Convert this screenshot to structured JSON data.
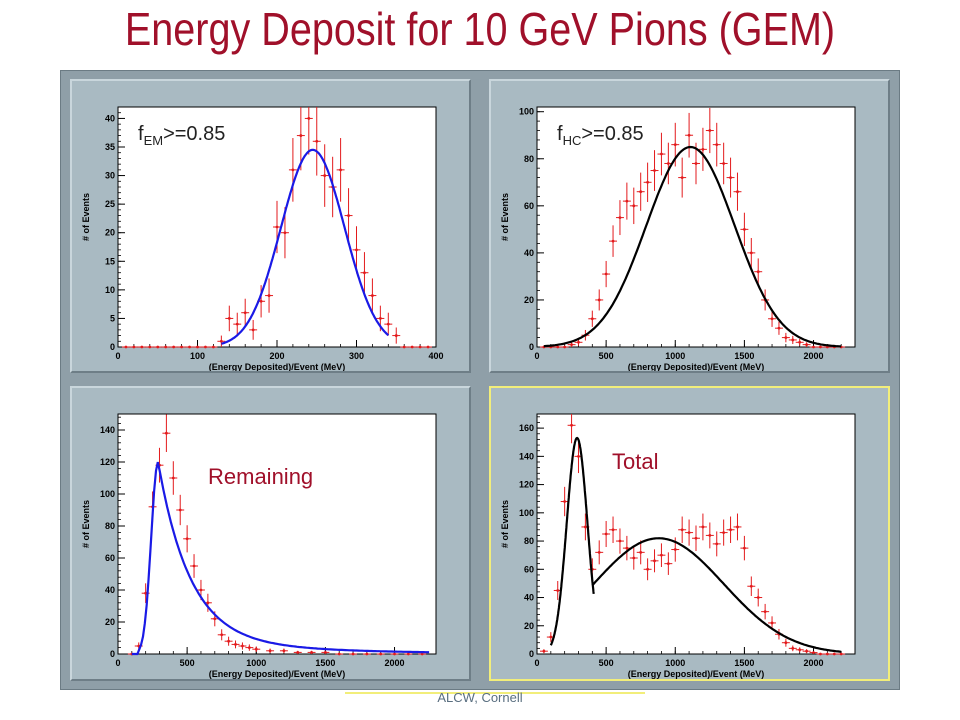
{
  "title": "Energy Deposit for 10 GeV Pions (GEM)",
  "footer": "ALCW, Cornell",
  "colors": {
    "title": "#a0102a",
    "data_points": "#e31a1c",
    "fit_blue": "#1a1ae6",
    "fit_black": "#000000",
    "pad_bg": "#a9bac2",
    "plot_bg": "#ffffff"
  },
  "chart_data": [
    {
      "type": "scatter",
      "panel": "top-left",
      "label": {
        "main": "f",
        "sub": "EM",
        "rest": ">=0.85"
      },
      "label_style": "dark",
      "xlabel": "(Energy Deposited)/Event (MeV)",
      "ylabel": "# of Events",
      "xlim": [
        0,
        400
      ],
      "ylim": [
        0,
        42
      ],
      "xticks": [
        0,
        100,
        200,
        300,
        400
      ],
      "yticks": [
        0,
        5,
        10,
        15,
        20,
        25,
        30,
        35,
        40
      ],
      "fit_color": "blue",
      "points": {
        "x": [
          10,
          20,
          30,
          40,
          50,
          60,
          70,
          80,
          90,
          100,
          110,
          120,
          130,
          140,
          150,
          160,
          170,
          180,
          190,
          200,
          210,
          220,
          230,
          240,
          250,
          260,
          270,
          280,
          290,
          300,
          310,
          320,
          330,
          340,
          350,
          360,
          370,
          380,
          390
        ],
        "y": [
          0,
          0,
          0,
          0,
          0,
          0,
          0,
          0,
          0,
          0,
          0,
          0,
          1,
          5,
          4,
          6,
          3,
          8,
          9,
          21,
          20,
          31,
          37,
          40,
          36,
          30,
          28,
          31,
          23,
          17,
          13,
          9,
          5,
          4,
          2,
          0,
          0,
          0,
          0
        ]
      },
      "fits": [
        {
          "kind": "gaussian",
          "amp": 34.5,
          "mean": 245,
          "sigma": 40,
          "xmin": 130,
          "xmax": 340
        }
      ]
    },
    {
      "type": "scatter",
      "panel": "top-right",
      "label": {
        "main": "f",
        "sub": "HC",
        "rest": ">=0.85"
      },
      "label_style": "dark",
      "xlabel": "(Energy Deposited)/Event (MeV)",
      "ylabel": "# of Events",
      "xlim": [
        0,
        2300
      ],
      "ylim": [
        0,
        102
      ],
      "xticks": [
        0,
        500,
        1000,
        1500,
        2000
      ],
      "yticks": [
        0,
        20,
        40,
        60,
        80,
        100
      ],
      "fit_color": "black",
      "points": {
        "x": [
          50,
          100,
          150,
          200,
          250,
          300,
          350,
          400,
          450,
          500,
          550,
          600,
          650,
          700,
          750,
          800,
          850,
          900,
          950,
          1000,
          1050,
          1100,
          1150,
          1200,
          1250,
          1300,
          1350,
          1400,
          1450,
          1500,
          1550,
          1600,
          1650,
          1700,
          1750,
          1800,
          1850,
          1900,
          1950,
          2000,
          2050,
          2100,
          2150,
          2200
        ],
        "y": [
          0,
          0,
          0,
          0,
          1,
          2,
          5,
          12,
          20,
          31,
          45,
          55,
          62,
          60,
          66,
          70,
          75,
          82,
          78,
          86,
          72,
          90,
          78,
          84,
          92,
          86,
          78,
          72,
          66,
          50,
          40,
          32,
          20,
          12,
          8,
          4,
          3,
          2,
          1,
          0,
          0,
          0,
          0,
          0
        ]
      },
      "fits": [
        {
          "kind": "gaussian",
          "amp": 85,
          "mean": 1110,
          "sigma": 320,
          "xmin": 50,
          "xmax": 2200
        }
      ]
    },
    {
      "type": "scatter",
      "panel": "bottom-left",
      "label": {
        "main": "Remaining",
        "sub": "",
        "rest": ""
      },
      "label_style": "red",
      "xlabel": "(Energy Deposited)/Event (MeV)",
      "ylabel": "# of Events",
      "xlim": [
        0,
        2300
      ],
      "ylim": [
        0,
        150
      ],
      "xticks": [
        0,
        500,
        1000,
        1500,
        2000
      ],
      "yticks": [
        0,
        20,
        40,
        60,
        80,
        100,
        120,
        140
      ],
      "fit_color": "blue",
      "points": {
        "x": [
          100,
          150,
          200,
          250,
          300,
          350,
          400,
          450,
          500,
          550,
          600,
          650,
          700,
          750,
          800,
          850,
          900,
          950,
          1000,
          1100,
          1200,
          1300,
          1400,
          1500,
          1600,
          1700,
          1800,
          1900,
          2000,
          2100,
          2200
        ],
        "y": [
          0,
          5,
          38,
          92,
          118,
          138,
          110,
          90,
          72,
          55,
          40,
          32,
          22,
          12,
          8,
          6,
          5,
          4,
          3,
          2,
          2,
          1,
          1,
          1,
          0,
          0,
          0,
          0,
          0,
          0,
          0
        ]
      },
      "fits": [
        {
          "kind": "landau",
          "amp": 120,
          "peak": 290,
          "rise": 50,
          "tail": 230,
          "start": 150,
          "xmin": 100,
          "xmax": 2250
        }
      ]
    },
    {
      "type": "scatter",
      "panel": "bottom-right",
      "label": {
        "main": "Total",
        "sub": "",
        "rest": ""
      },
      "label_style": "red",
      "xlabel": "(Energy Deposited)/Event (MeV)",
      "ylabel": "# of Events",
      "xlim": [
        0,
        2300
      ],
      "ylim": [
        0,
        170
      ],
      "xticks": [
        0,
        500,
        1000,
        1500,
        2000
      ],
      "yticks": [
        0,
        20,
        40,
        60,
        80,
        100,
        120,
        140,
        160
      ],
      "fit_color": "black",
      "points": {
        "x": [
          50,
          100,
          150,
          200,
          250,
          300,
          350,
          400,
          450,
          500,
          550,
          600,
          650,
          700,
          750,
          800,
          850,
          900,
          950,
          1000,
          1050,
          1100,
          1150,
          1200,
          1250,
          1300,
          1350,
          1400,
          1450,
          1500,
          1550,
          1600,
          1650,
          1700,
          1750,
          1800,
          1850,
          1900,
          1950,
          2000,
          2050,
          2100,
          2150,
          2200
        ],
        "y": [
          2,
          12,
          45,
          108,
          162,
          140,
          90,
          60,
          72,
          85,
          88,
          80,
          75,
          68,
          72,
          60,
          66,
          70,
          64,
          74,
          88,
          86,
          82,
          90,
          84,
          78,
          86,
          88,
          90,
          75,
          48,
          40,
          30,
          22,
          14,
          8,
          4,
          3,
          2,
          1,
          0,
          0,
          0,
          0
        ]
      },
      "fits": [
        {
          "kind": "gaussian",
          "amp": 153,
          "mean": 290,
          "sigma": 75,
          "xmin": 100,
          "xmax": 410
        },
        {
          "kind": "gaussian",
          "amp": 82,
          "mean": 880,
          "sigma": 470,
          "xmin": 400,
          "xmax": 2200
        }
      ]
    }
  ]
}
